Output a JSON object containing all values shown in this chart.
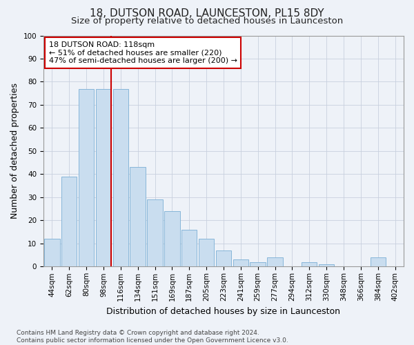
{
  "title": "18, DUTSON ROAD, LAUNCESTON, PL15 8DY",
  "subtitle": "Size of property relative to detached houses in Launceston",
  "xlabel": "Distribution of detached houses by size in Launceston",
  "ylabel": "Number of detached properties",
  "bar_labels": [
    "44sqm",
    "62sqm",
    "80sqm",
    "98sqm",
    "116sqm",
    "134sqm",
    "151sqm",
    "169sqm",
    "187sqm",
    "205sqm",
    "223sqm",
    "241sqm",
    "259sqm",
    "277sqm",
    "294sqm",
    "312sqm",
    "330sqm",
    "348sqm",
    "366sqm",
    "384sqm",
    "402sqm"
  ],
  "bar_values": [
    12,
    39,
    77,
    77,
    77,
    43,
    29,
    24,
    16,
    12,
    7,
    3,
    2,
    4,
    0,
    2,
    1,
    0,
    0,
    4,
    0
  ],
  "bar_color": "#c9ddef",
  "bar_edge_color": "#7aaed4",
  "ylim": [
    0,
    100
  ],
  "yticks": [
    0,
    10,
    20,
    30,
    40,
    50,
    60,
    70,
    80,
    90,
    100
  ],
  "annotation_title": "18 DUTSON ROAD: 118sqm",
  "annotation_line1": "← 51% of detached houses are smaller (220)",
  "annotation_line2": "47% of semi-detached houses are larger (200) →",
  "annotation_box_color": "#ffffff",
  "annotation_box_edge_color": "#cc0000",
  "vline_color": "#cc0000",
  "footer_line1": "Contains HM Land Registry data © Crown copyright and database right 2024.",
  "footer_line2": "Contains public sector information licensed under the Open Government Licence v3.0.",
  "bg_color": "#eef2f8",
  "grid_color": "#c8d0de",
  "title_fontsize": 11,
  "subtitle_fontsize": 9.5,
  "ylabel_fontsize": 9,
  "xlabel_fontsize": 9,
  "tick_fontsize": 7.5,
  "annotation_fontsize": 8,
  "footer_fontsize": 6.5
}
